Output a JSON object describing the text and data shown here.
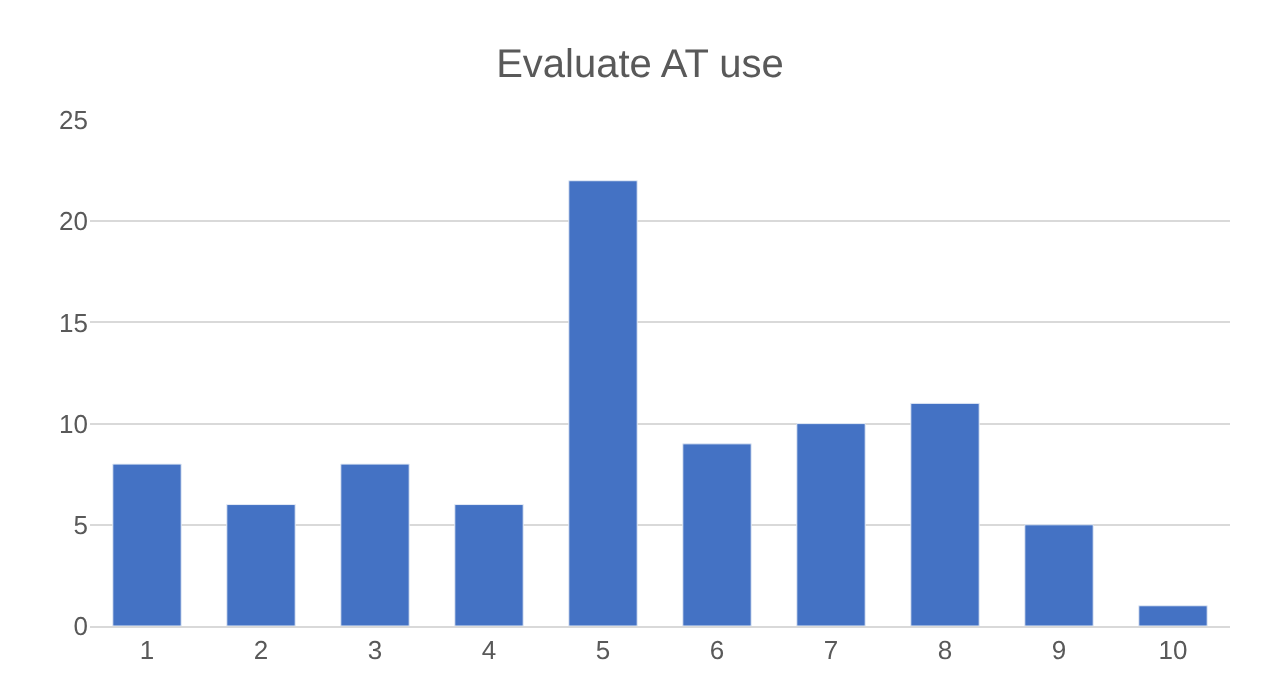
{
  "chart_data": {
    "type": "bar",
    "title": "Evaluate AT use",
    "categories": [
      "1",
      "2",
      "3",
      "4",
      "5",
      "6",
      "7",
      "8",
      "9",
      "10"
    ],
    "values": [
      8,
      6,
      8,
      6,
      22,
      9,
      10,
      11,
      5,
      1
    ],
    "color": "#4472c4",
    "ylim": [
      0,
      25
    ],
    "yticks": [
      0,
      5,
      10,
      15,
      20,
      25
    ],
    "grid": "y"
  }
}
